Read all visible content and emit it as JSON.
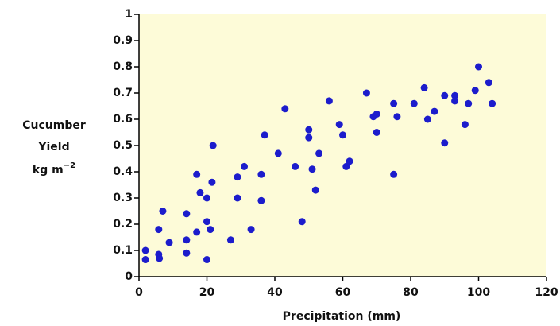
{
  "chart_data": {
    "type": "scatter",
    "x_label": "Precipitation (mm)",
    "y_label": [
      "Cucumber",
      "Yield"
    ],
    "y_unit": "kg m",
    "y_unit_exponent": "−2",
    "color": "#1c1ccc",
    "background": "#fdfbd8",
    "xlim": [
      0,
      120
    ],
    "ylim": [
      0,
      1
    ],
    "xticks": [
      0,
      20,
      40,
      60,
      80,
      100,
      120
    ],
    "yticks": [
      0,
      0.1,
      0.2,
      0.3,
      0.4,
      0.5,
      0.6,
      0.7,
      0.8,
      0.9,
      1
    ],
    "x": [
      1.9,
      1.9,
      5.8,
      5.8,
      6,
      7,
      8.9,
      14,
      14,
      14,
      17,
      17,
      18,
      20,
      20,
      21,
      20,
      21.5,
      21.8,
      27,
      29,
      29,
      31,
      33,
      36,
      36,
      37,
      41,
      43,
      46,
      48,
      50,
      50,
      51,
      52,
      53,
      56,
      59,
      60,
      61,
      62,
      67,
      69,
      70,
      70,
      75,
      75,
      76,
      81,
      84,
      85,
      87,
      90,
      90,
      93,
      93,
      96,
      97,
      99,
      100,
      103,
      104
    ],
    "values": [
      0.1,
      0.065,
      0.18,
      0.085,
      0.07,
      0.25,
      0.13,
      0.24,
      0.14,
      0.09,
      0.39,
      0.17,
      0.32,
      0.3,
      0.21,
      0.18,
      0.065,
      0.36,
      0.5,
      0.14,
      0.38,
      0.3,
      0.42,
      0.18,
      0.39,
      0.29,
      0.54,
      0.47,
      0.64,
      0.42,
      0.21,
      0.56,
      0.53,
      0.41,
      0.33,
      0.47,
      0.67,
      0.58,
      0.54,
      0.42,
      0.44,
      0.7,
      0.61,
      0.62,
      0.55,
      0.66,
      0.39,
      0.61,
      0.66,
      0.72,
      0.6,
      0.63,
      0.69,
      0.51,
      0.69,
      0.67,
      0.58,
      0.66,
      0.71,
      0.8,
      0.74,
      0.66
    ]
  }
}
